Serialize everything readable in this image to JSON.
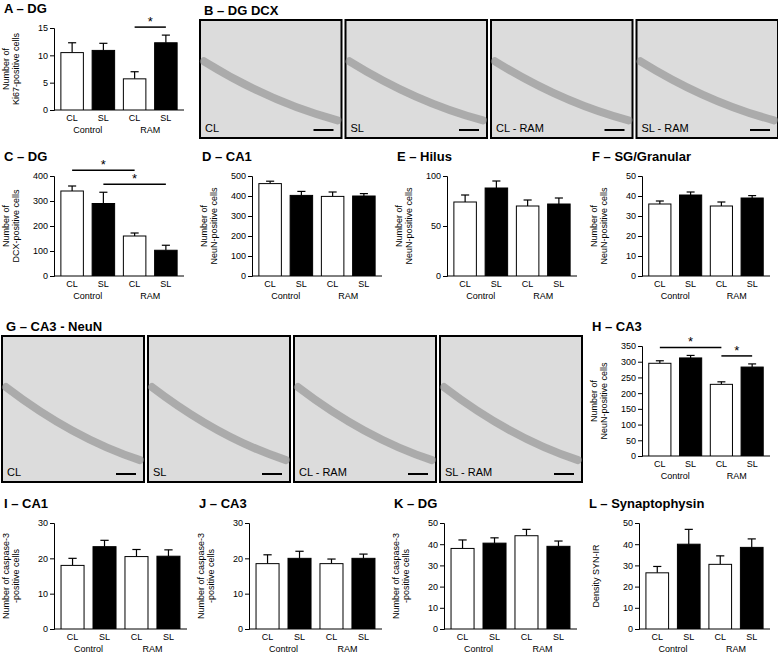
{
  "chart_data": [
    {
      "type": "bar",
      "title": "A – DG",
      "ylabel": [
        "Number of",
        "Ki67-positive cells"
      ],
      "categories": [
        "CL",
        "SL",
        "CL",
        "SL"
      ],
      "groups": [
        "Control",
        "RAM"
      ],
      "values": [
        10.5,
        10.9,
        5.7,
        12.3
      ],
      "errors": [
        1.8,
        1.3,
        1.3,
        1.4
      ],
      "colors": [
        "#ffffff",
        "#000000",
        "#ffffff",
        "#000000"
      ],
      "ylim": [
        0,
        15
      ],
      "yticks": [
        0,
        5,
        10,
        15
      ],
      "significance": [
        {
          "from": 2,
          "to": 3,
          "label": "*"
        }
      ]
    },
    {
      "type": "bar",
      "title": "C – DG",
      "ylabel": [
        "Number of",
        "DCX-positive cells"
      ],
      "categories": [
        "CL",
        "SL",
        "CL",
        "SL"
      ],
      "groups": [
        "Control",
        "RAM"
      ],
      "values": [
        340,
        290,
        160,
        103
      ],
      "errors": [
        20,
        45,
        12,
        20
      ],
      "colors": [
        "#ffffff",
        "#000000",
        "#ffffff",
        "#000000"
      ],
      "ylim": [
        0,
        400
      ],
      "yticks": [
        0,
        100,
        200,
        300,
        400
      ],
      "significance": [
        {
          "from": 1,
          "to": 3,
          "label": "*"
        },
        {
          "from": 0,
          "to": 2,
          "label": "*"
        }
      ]
    },
    {
      "type": "bar",
      "title": "D – CA1",
      "ylabel": [
        "Number of",
        "NeuN-positive cells"
      ],
      "categories": [
        "CL",
        "SL",
        "CL",
        "SL"
      ],
      "groups": [
        "Control",
        "RAM"
      ],
      "values": [
        462,
        403,
        398,
        400
      ],
      "errors": [
        12,
        20,
        22,
        12
      ],
      "colors": [
        "#ffffff",
        "#000000",
        "#ffffff",
        "#000000"
      ],
      "ylim": [
        0,
        500
      ],
      "yticks": [
        0,
        100,
        200,
        300,
        400,
        500
      ],
      "significance": []
    },
    {
      "type": "bar",
      "title": "E – Hilus",
      "ylabel": [
        "Number of",
        "NeuN-positive cells"
      ],
      "categories": [
        "CL",
        "SL",
        "CL",
        "SL"
      ],
      "groups": [
        "Control",
        "RAM"
      ],
      "values": [
        74,
        88,
        70,
        72
      ],
      "errors": [
        7,
        7,
        6,
        6
      ],
      "colors": [
        "#ffffff",
        "#000000",
        "#ffffff",
        "#000000"
      ],
      "ylim": [
        0,
        100
      ],
      "yticks": [
        0,
        50,
        100
      ],
      "significance": []
    },
    {
      "type": "bar",
      "title": "F – SG/Granular",
      "ylabel": [
        "Number of",
        "NeuN-positive cells"
      ],
      "categories": [
        "CL",
        "SL",
        "CL",
        "SL"
      ],
      "groups": [
        "Control",
        "RAM"
      ],
      "values": [
        36,
        40.5,
        35,
        39
      ],
      "errors": [
        1.5,
        1.5,
        2,
        1.2
      ],
      "colors": [
        "#ffffff",
        "#000000",
        "#ffffff",
        "#000000"
      ],
      "ylim": [
        0,
        50
      ],
      "yticks": [
        0,
        10,
        20,
        30,
        40,
        50
      ],
      "significance": []
    },
    {
      "type": "bar",
      "title": "H – CA3",
      "ylabel": [
        "Number of",
        "NeuN-positive cells"
      ],
      "categories": [
        "CL",
        "SL",
        "CL",
        "SL"
      ],
      "groups": [
        "Control",
        "RAM"
      ],
      "values": [
        295,
        312,
        228,
        283
      ],
      "errors": [
        8,
        8,
        8,
        10
      ],
      "colors": [
        "#ffffff",
        "#000000",
        "#ffffff",
        "#000000"
      ],
      "ylim": [
        0,
        350
      ],
      "yticks": [
        0,
        50,
        100,
        150,
        200,
        250,
        300,
        350
      ],
      "significance": [
        {
          "from": 0,
          "to": 2,
          "label": "*"
        },
        {
          "from": 2,
          "to": 3,
          "label": "*"
        }
      ]
    },
    {
      "type": "bar",
      "title": "I – CA1",
      "ylabel": [
        "Number of caspase-3",
        "-positive cells"
      ],
      "categories": [
        "CL",
        "SL",
        "CL",
        "SL"
      ],
      "groups": [
        "Control",
        "RAM"
      ],
      "values": [
        18,
        23.3,
        20.5,
        20.6
      ],
      "errors": [
        2,
        1.8,
        2,
        1.8
      ],
      "colors": [
        "#ffffff",
        "#000000",
        "#ffffff",
        "#000000"
      ],
      "ylim": [
        0,
        30
      ],
      "yticks": [
        0,
        10,
        20,
        30
      ],
      "significance": []
    },
    {
      "type": "bar",
      "title": "J – CA3",
      "ylabel": [
        "Number of caspase-3",
        "-positive cells"
      ],
      "categories": [
        "CL",
        "SL",
        "CL",
        "SL"
      ],
      "groups": [
        "Control",
        "RAM"
      ],
      "values": [
        18.5,
        20,
        18.5,
        20
      ],
      "errors": [
        2.5,
        2,
        1.3,
        1.2
      ],
      "colors": [
        "#ffffff",
        "#000000",
        "#ffffff",
        "#000000"
      ],
      "ylim": [
        0,
        30
      ],
      "yticks": [
        0,
        10,
        20,
        30
      ],
      "significance": []
    },
    {
      "type": "bar",
      "title": "K – DG",
      "ylabel": [
        "Number of caspase-3",
        "-positive cells"
      ],
      "categories": [
        "CL",
        "SL",
        "CL",
        "SL"
      ],
      "groups": [
        "Control",
        "RAM"
      ],
      "values": [
        38,
        40.5,
        44,
        39
      ],
      "errors": [
        4,
        2.5,
        3,
        2.5
      ],
      "colors": [
        "#ffffff",
        "#000000",
        "#ffffff",
        "#000000"
      ],
      "ylim": [
        0,
        50
      ],
      "yticks": [
        0,
        10,
        20,
        30,
        40,
        50
      ],
      "significance": []
    },
    {
      "type": "bar",
      "title": "L – Synaptophysin",
      "ylabel": [
        "Density SYN-IR"
      ],
      "categories": [
        "CL",
        "SL",
        "CL",
        "SL"
      ],
      "groups": [
        "Control",
        "RAM"
      ],
      "values": [
        26.5,
        40,
        30.5,
        38.5
      ],
      "errors": [
        3,
        7,
        4,
        4
      ],
      "colors": [
        "#ffffff",
        "#000000",
        "#ffffff",
        "#000000"
      ],
      "ylim": [
        0,
        50
      ],
      "yticks": [
        0,
        10,
        20,
        30,
        40,
        50
      ],
      "significance": []
    }
  ],
  "image_panels": [
    {
      "title": "B – DG DCX",
      "labels": [
        "CL",
        "SL",
        "CL - RAM",
        "SL - RAM"
      ]
    },
    {
      "title": "G – CA3 - NeuN",
      "labels": [
        "CL",
        "SL",
        "CL - RAM",
        "SL - RAM"
      ]
    }
  ]
}
